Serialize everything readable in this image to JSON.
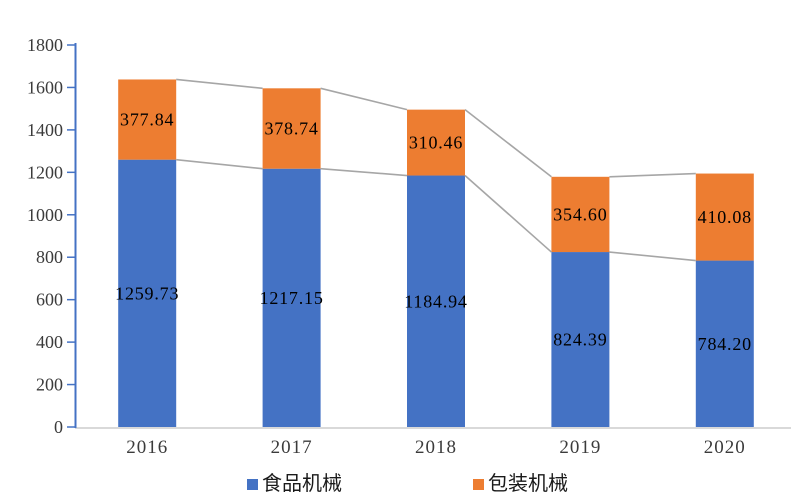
{
  "chart_data": {
    "type": "bar",
    "stacked": true,
    "title": "",
    "xlabel": "",
    "ylabel": "",
    "categories": [
      "2016",
      "2017",
      "2018",
      "2019",
      "2020"
    ],
    "series": [
      {
        "name": "食品机械",
        "color": "#4472C4",
        "values": [
          1259.73,
          1217.15,
          1184.94,
          824.39,
          784.2
        ]
      },
      {
        "name": "包装机械",
        "color": "#ED7D31",
        "values": [
          377.84,
          378.74,
          310.46,
          354.6,
          410.08
        ]
      }
    ],
    "data_labels": [
      "1259.73",
      "1217.15",
      "1184.94",
      "824.39",
      "784.20",
      "377.84",
      "378.74",
      "310.46",
      "354.60",
      "410.08"
    ],
    "ylim": [
      0,
      1800
    ],
    "ytick_step": 200,
    "ytick_labels": [
      "0",
      "200",
      "400",
      "600",
      "800",
      "1000",
      "1200",
      "1400",
      "1600",
      "1800"
    ],
    "grid": false,
    "legend_position": "bottom",
    "series_lines": true,
    "colors": {
      "axis": "#4472C4",
      "baseline": "#D9D9D9",
      "series_line": "#A6A6A6",
      "tick_text": "#3B3B3B",
      "data_label_text": "#000000",
      "background": "#FFFFFF"
    }
  }
}
